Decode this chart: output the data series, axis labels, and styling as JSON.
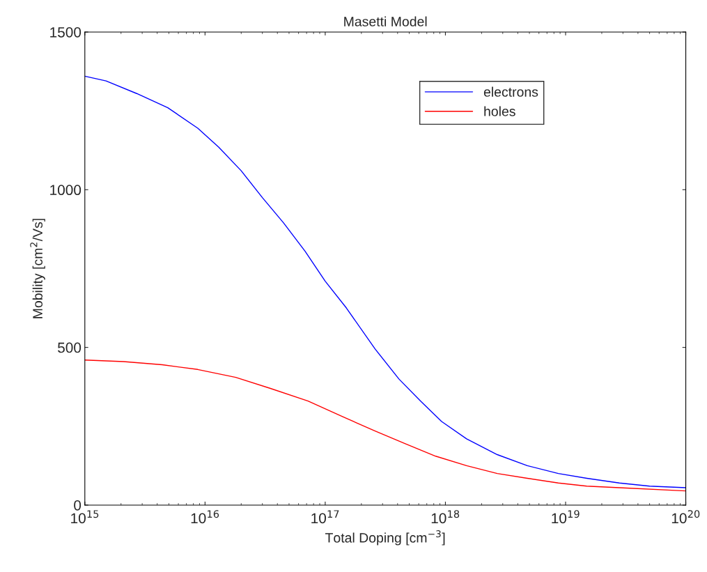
{
  "chart_data": {
    "type": "line",
    "title": "Masetti Model",
    "xlabel": "Total Doping [cm$^{−3}$]",
    "ylabel": "Mobility [cm$^{2}$/Vs]",
    "log": "x",
    "xlim": [
      1000000000000000.0,
      1e+20
    ],
    "xticks": [
      {
        "value": 1000000000000000.0,
        "label": "10$^{15}$"
      },
      {
        "value": 1e+16,
        "label": "10$^{16}$"
      },
      {
        "value": 1e+17,
        "label": "10$^{17}$"
      },
      {
        "value": 1e+18,
        "label": "10$^{18}$"
      },
      {
        "value": 1e+19,
        "label": "10$^{19}$"
      },
      {
        "value": 1e+20,
        "label": "10$^{20}$"
      }
    ],
    "ylim": [
      0,
      1500
    ],
    "yticks": [
      0,
      500,
      1000,
      1500
    ],
    "grid": false,
    "legend": "top right",
    "line_style": "solid",
    "marker": "none",
    "series": [
      {
        "name": "electrons",
        "color": "#0000ff",
        "x": [
          1000000000000000.0,
          1500000000000000.0,
          2700000000000000.0,
          4900000000000000.0,
          8700000000000000.0,
          1.3e+16,
          2e+16,
          3e+16,
          4.5e+16,
          6.8e+16,
          1e+17,
          1.5e+17,
          2.6e+17,
          4.1e+17,
          6.2e+17,
          9.3e+17,
          1.5e+18,
          2.7e+18,
          4.8e+18,
          8.7e+18,
          1.5e+19,
          2.8e+19,
          5e+19,
          1e+20
        ],
        "values": [
          1360,
          1345,
          1305,
          1260,
          1195,
          1135,
          1060,
          975,
          895,
          805,
          710,
          625,
          495,
          400,
          330,
          265,
          210,
          160,
          125,
          100,
          85,
          70,
          60,
          55
        ]
      },
      {
        "name": "holes",
        "color": "#ff0000",
        "x": [
          1000000000000000.0,
          2100000000000000.0,
          4400000000000000.0,
          8700000000000000.0,
          1.8e+16,
          3.5e+16,
          7.2e+16,
          1.4e+17,
          2.6e+17,
          4.6e+17,
          8.3e+17,
          1.5e+18,
          2.7e+18,
          4.8e+18,
          8.7e+18,
          1.5e+19,
          2.8e+19,
          1e+20
        ],
        "values": [
          460,
          455,
          445,
          430,
          405,
          370,
          330,
          280,
          235,
          195,
          155,
          125,
          100,
          85,
          70,
          60,
          55,
          45
        ]
      }
    ]
  }
}
